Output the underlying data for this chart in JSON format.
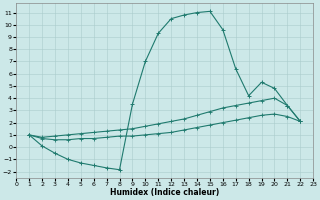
{
  "xlabel": "Humidex (Indice chaleur)",
  "background_color": "#cce8e8",
  "line_color": "#1f7a6e",
  "grid_color": "#aacccc",
  "xlim": [
    0,
    23
  ],
  "ylim": [
    -2.5,
    11.8
  ],
  "xticks": [
    0,
    1,
    2,
    3,
    4,
    5,
    6,
    7,
    8,
    9,
    10,
    11,
    12,
    13,
    14,
    15,
    16,
    17,
    18,
    19,
    20,
    21,
    22,
    23
  ],
  "yticks": [
    -2,
    -1,
    0,
    1,
    2,
    3,
    4,
    5,
    6,
    7,
    8,
    9,
    10,
    11
  ],
  "s1x": [
    1,
    2,
    3,
    4,
    5,
    6,
    7,
    8,
    9,
    10,
    11,
    12,
    13,
    14,
    15,
    16,
    17,
    18,
    19,
    20,
    21,
    22
  ],
  "s1y": [
    1.0,
    0.1,
    -0.5,
    -1.0,
    -1.3,
    -1.5,
    -1.7,
    -1.85,
    3.5,
    7.0,
    9.3,
    10.5,
    10.8,
    11.0,
    11.1,
    9.6,
    6.4,
    4.2,
    5.3,
    4.8,
    3.4,
    2.1
  ],
  "s2x": [
    1,
    2,
    3,
    4,
    5,
    6,
    7,
    8,
    9,
    10,
    11,
    12,
    13,
    14,
    15,
    16,
    17,
    18,
    19,
    20,
    21,
    22
  ],
  "s2y": [
    1.0,
    0.8,
    0.9,
    1.0,
    1.1,
    1.2,
    1.3,
    1.4,
    1.5,
    1.7,
    1.9,
    2.1,
    2.3,
    2.6,
    2.9,
    3.2,
    3.4,
    3.6,
    3.8,
    4.0,
    3.4,
    2.1
  ],
  "s3x": [
    1,
    2,
    3,
    4,
    5,
    6,
    7,
    8,
    9,
    10,
    11,
    12,
    13,
    14,
    15,
    16,
    17,
    18,
    19,
    20,
    21,
    22
  ],
  "s3y": [
    1.0,
    0.7,
    0.6,
    0.6,
    0.7,
    0.7,
    0.8,
    0.9,
    0.9,
    1.0,
    1.1,
    1.2,
    1.4,
    1.6,
    1.8,
    2.0,
    2.2,
    2.4,
    2.6,
    2.7,
    2.5,
    2.1
  ],
  "lw": 0.8,
  "ms": 2.5,
  "xlabel_fontsize": 5.5,
  "tick_fontsize": 4.5
}
